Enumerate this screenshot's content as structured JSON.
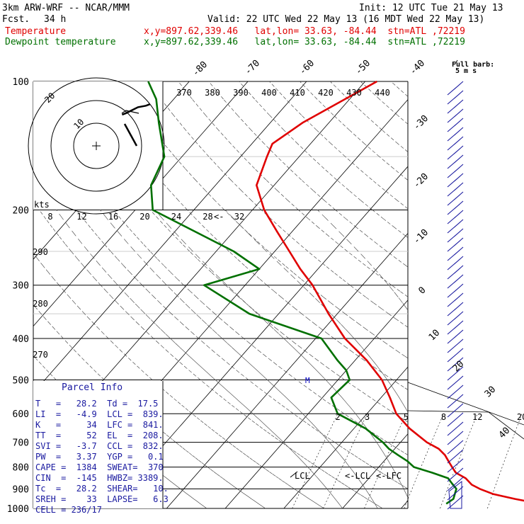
{
  "header": {
    "model": "3km ARW-WRF -- NCAR/MMM",
    "init": "Init: 12 UTC Tue 21 May 13",
    "fcst_label": "Fcst.",
    "fcst_value": "34 h",
    "valid": "Valid: 22 UTC Wed 22 May 13 (16 MDT Wed 22 May 13)"
  },
  "legend": [
    {
      "label": "Temperature",
      "info": "x,y=897.62,339.46   lat,lon= 33.63, -84.44  stn=ATL ,72219",
      "color": "#e00000"
    },
    {
      "label": "Dewpoint temperature",
      "info": "x,y=897.62,339.46   lat,lon= 33.63, -84.44  stn=ATL ,72219",
      "color": "#007000"
    }
  ],
  "parcel_info": {
    "title": "Parcel Info",
    "rows": [
      "T   =   28.2  Td =  17.5",
      "LI  =   -4.9  LCL =  839.",
      "K   =     34  LFC =  841.",
      "TT  =     52  EL  =  208.",
      "SVI =   -3.7  CCL =  832.",
      "PW  =   3.37  YGP =   0.1",
      "CAPE =  1384  SWEAT=  370",
      "CIN  =  -145  HWBZ= 3389.",
      "Tc  =   28.2  SHEAR=   10.",
      "SREH =    33  LAPSE=   6.3",
      "CELL = 236/17"
    ]
  },
  "hodograph": {
    "units_label": "kts",
    "ring_labels": [
      "10",
      "20"
    ],
    "speed_ticks": [
      "8",
      "12",
      "16",
      "20",
      "24",
      "28",
      "32"
    ]
  },
  "wind_key": {
    "title": "Full barb:",
    "value": "5 m s"
  },
  "annotations": {
    "lcl_left": "LCL",
    "lcl": "<-LCL",
    "lfc": "<-LFC",
    "mixing_ratio_labels": [
      "2",
      "3",
      "5",
      "8",
      "12",
      "20"
    ],
    "theta_labels": [
      "370",
      "380",
      "390",
      "400",
      "410",
      "420",
      "430",
      "440"
    ],
    "theta_left_labels": [
      "290",
      "280",
      "270"
    ],
    "wetbulb_marker": "M"
  },
  "chart_data": {
    "type": "line",
    "subtype": "skew-T log-P sounding",
    "y_axis": {
      "label": "Pressure (hPa)",
      "scale": "log",
      "range": [
        1000,
        100
      ],
      "ticks": [
        100,
        200,
        300,
        400,
        500,
        600,
        700,
        800,
        900,
        1000
      ]
    },
    "isotherm_labels": [
      -80,
      -70,
      -60,
      -50,
      -40,
      -30,
      -20,
      -10,
      0,
      10,
      20,
      30,
      40
    ],
    "series": [
      {
        "name": "Temperature",
        "color": "#e00000",
        "pressure": [
          970,
          950,
          925,
          900,
          880,
          850,
          825,
          800,
          775,
          750,
          725,
          700,
          650,
          600,
          550,
          500,
          450,
          400,
          350,
          300,
          275,
          250,
          225,
          200,
          175,
          150,
          140,
          125,
          100
        ],
        "temp_c": [
          32.0,
          28.0,
          23.5,
          20.5,
          18.5,
          16.5,
          14.0,
          12.5,
          11.0,
          9.5,
          7.5,
          4.5,
          -0.5,
          -5.0,
          -8.5,
          -12.5,
          -18.0,
          -25.0,
          -31.5,
          -38.5,
          -43.0,
          -47.5,
          -52.5,
          -58.0,
          -63.0,
          -65.5,
          -66.5,
          -64.5,
          -58.0
        ]
      },
      {
        "name": "Dewpoint temperature",
        "color": "#007000",
        "pressure": [
          975,
          950,
          925,
          900,
          875,
          850,
          825,
          800,
          775,
          750,
          725,
          700,
          650,
          600,
          550,
          500,
          475,
          450,
          400,
          350,
          300,
          275,
          250,
          200,
          175,
          150,
          125,
          110,
          100
        ],
        "dewpoint_c": [
          17.0,
          17.5,
          17.0,
          16.5,
          15.0,
          13.5,
          10.0,
          6.0,
          4.0,
          1.5,
          -1.0,
          -3.0,
          -8.0,
          -15.0,
          -18.5,
          -18.0,
          -20.0,
          -23.0,
          -29.0,
          -45.0,
          -57.0,
          -50.0,
          -57.0,
          -77.0,
          -81.0,
          -83.0,
          -89.0,
          -93.0,
          -97.0
        ]
      }
    ],
    "hodograph": {
      "points_kts": [
        [
          13,
          21
        ],
        [
          15,
          22
        ],
        [
          18,
          24
        ],
        [
          21,
          26
        ],
        [
          25,
          27
        ],
        [
          27,
          28
        ]
      ]
    }
  }
}
